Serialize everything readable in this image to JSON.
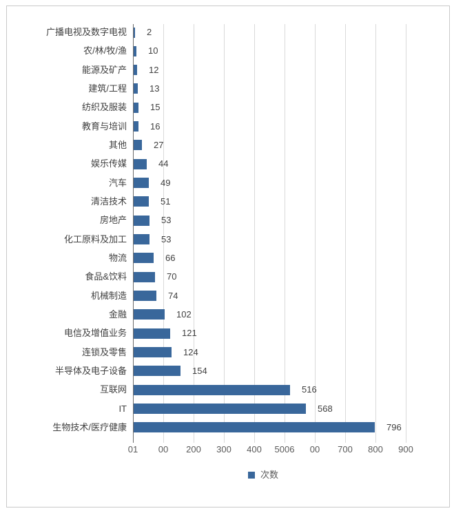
{
  "chart_data": {
    "type": "bar",
    "orientation": "horizontal",
    "title": "",
    "xlabel": "",
    "ylabel": "",
    "categories": [
      "广播电视及数字电视",
      "农/林/牧/渔",
      "能源及矿产",
      "建筑/工程",
      "纺织及服装",
      "教育与培训",
      "其他",
      "娱乐传媒",
      "汽车",
      "清洁技术",
      "房地产",
      "化工原料及加工",
      "物流",
      "食品&饮料",
      "机械制造",
      "金融",
      "电信及增值业务",
      "连锁及零售",
      "半导体及电子设备",
      "互联网",
      "IT",
      "生物技术/医疗健康"
    ],
    "values": [
      2,
      10,
      12,
      13,
      15,
      16,
      27,
      44,
      49,
      51,
      53,
      53,
      66,
      70,
      74,
      102,
      121,
      124,
      154,
      516,
      568,
      796
    ],
    "value_labels_shown": true,
    "xlim": [
      0,
      900
    ],
    "xticks": [
      0,
      100,
      200,
      300,
      400,
      500,
      600,
      700,
      800,
      900
    ],
    "xtick_labels_rendered": [
      "01",
      "00",
      "200",
      "300",
      "400",
      "5006",
      "00",
      "700",
      "800",
      "900"
    ],
    "grid": "vertical-gridlines-on",
    "legend": {
      "position": "bottom-center",
      "label": "次数"
    },
    "bar_color": "#39679B"
  },
  "colors": {
    "bar": "#39679B",
    "gridline": "#d9d9d9",
    "axis_line": "#6a6a6a",
    "label_text": "#3f3f3f",
    "tick_text": "#595959",
    "frame_border": "#c9c9c9",
    "background": "#ffffff"
  }
}
